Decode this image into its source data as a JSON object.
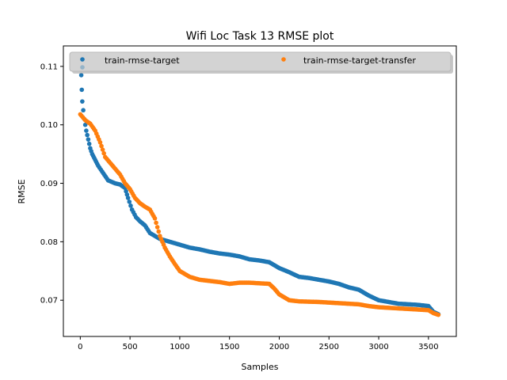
{
  "chart_data": {
    "type": "scatter",
    "title": "Wifi Loc Task 13 RMSE plot",
    "xlabel": "Samples",
    "ylabel": "RMSE",
    "xlim": [
      -170,
      3780
    ],
    "ylim": [
      0.0638,
      0.1135
    ],
    "xticks": [
      0,
      500,
      1000,
      1500,
      2000,
      2500,
      3000,
      3500
    ],
    "yticks": [
      0.07,
      0.08,
      0.09,
      0.1,
      0.11
    ],
    "xtick_labels": [
      "0",
      "500",
      "1000",
      "1500",
      "2000",
      "2500",
      "3000",
      "3500"
    ],
    "ytick_labels": [
      "0.07",
      "0.08",
      "0.09",
      "0.10",
      "0.11"
    ],
    "grid": false,
    "legend": {
      "placement": "top",
      "columns": 2
    },
    "series": [
      {
        "name": "train-rmse-target",
        "color": "#1f77b4",
        "points": [
          [
            0,
            0.1115
          ],
          [
            10,
            0.1085
          ],
          [
            15,
            0.106
          ],
          [
            20,
            0.104
          ],
          [
            30,
            0.1025
          ],
          [
            40,
            0.101
          ],
          [
            60,
            0.099
          ],
          [
            80,
            0.0975
          ],
          [
            100,
            0.096
          ],
          [
            120,
            0.095
          ],
          [
            150,
            0.094
          ],
          [
            180,
            0.093
          ],
          [
            220,
            0.092
          ],
          [
            280,
            0.0905
          ],
          [
            350,
            0.09
          ],
          [
            400,
            0.0898
          ],
          [
            450,
            0.0892
          ],
          [
            480,
            0.0875
          ],
          [
            520,
            0.0855
          ],
          [
            560,
            0.0842
          ],
          [
            600,
            0.0835
          ],
          [
            650,
            0.0828
          ],
          [
            700,
            0.0815
          ],
          [
            800,
            0.0805
          ],
          [
            900,
            0.08
          ],
          [
            1000,
            0.0795
          ],
          [
            1100,
            0.079
          ],
          [
            1200,
            0.0787
          ],
          [
            1300,
            0.0783
          ],
          [
            1400,
            0.078
          ],
          [
            1500,
            0.0778
          ],
          [
            1600,
            0.0775
          ],
          [
            1700,
            0.077
          ],
          [
            1800,
            0.0768
          ],
          [
            1900,
            0.0765
          ],
          [
            1950,
            0.076
          ],
          [
            2000,
            0.0755
          ],
          [
            2100,
            0.0748
          ],
          [
            2200,
            0.074
          ],
          [
            2300,
            0.0738
          ],
          [
            2400,
            0.0735
          ],
          [
            2500,
            0.0732
          ],
          [
            2600,
            0.0728
          ],
          [
            2700,
            0.0722
          ],
          [
            2800,
            0.0718
          ],
          [
            2900,
            0.0708
          ],
          [
            3000,
            0.07
          ],
          [
            3100,
            0.0697
          ],
          [
            3200,
            0.0694
          ],
          [
            3300,
            0.0693
          ],
          [
            3400,
            0.0692
          ],
          [
            3500,
            0.069
          ],
          [
            3550,
            0.068
          ],
          [
            3600,
            0.0676
          ]
        ]
      },
      {
        "name": "train-rmse-target-transfer",
        "color": "#ff7f0e",
        "points": [
          [
            0,
            0.1018
          ],
          [
            50,
            0.1008
          ],
          [
            100,
            0.1002
          ],
          [
            150,
            0.099
          ],
          [
            200,
            0.097
          ],
          [
            250,
            0.0945
          ],
          [
            300,
            0.0935
          ],
          [
            350,
            0.0925
          ],
          [
            400,
            0.0915
          ],
          [
            450,
            0.09
          ],
          [
            500,
            0.089
          ],
          [
            550,
            0.0875
          ],
          [
            600,
            0.0866
          ],
          [
            650,
            0.086
          ],
          [
            700,
            0.0855
          ],
          [
            750,
            0.084
          ],
          [
            800,
            0.081
          ],
          [
            850,
            0.079
          ],
          [
            900,
            0.0775
          ],
          [
            950,
            0.0762
          ],
          [
            1000,
            0.075
          ],
          [
            1050,
            0.0745
          ],
          [
            1100,
            0.074
          ],
          [
            1200,
            0.0735
          ],
          [
            1300,
            0.0733
          ],
          [
            1400,
            0.0731
          ],
          [
            1500,
            0.0728
          ],
          [
            1600,
            0.073
          ],
          [
            1700,
            0.073
          ],
          [
            1800,
            0.0729
          ],
          [
            1900,
            0.0728
          ],
          [
            1950,
            0.072
          ],
          [
            2000,
            0.071
          ],
          [
            2100,
            0.07
          ],
          [
            2200,
            0.0698
          ],
          [
            2400,
            0.0697
          ],
          [
            2600,
            0.0695
          ],
          [
            2800,
            0.0693
          ],
          [
            2900,
            0.069
          ],
          [
            3000,
            0.0688
          ],
          [
            3100,
            0.0687
          ],
          [
            3200,
            0.0686
          ],
          [
            3300,
            0.0685
          ],
          [
            3400,
            0.0684
          ],
          [
            3500,
            0.0683
          ],
          [
            3550,
            0.0678
          ],
          [
            3600,
            0.0675
          ]
        ]
      }
    ]
  }
}
